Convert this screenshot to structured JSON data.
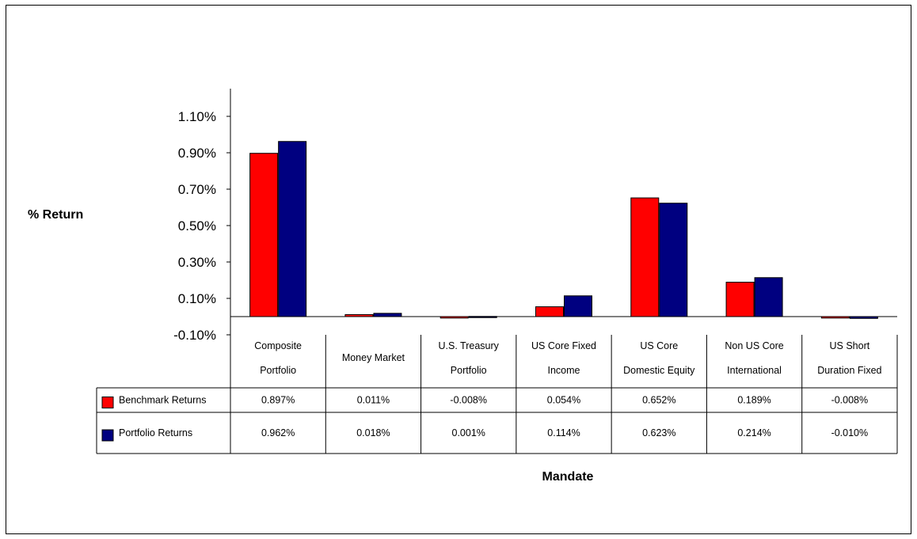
{
  "chart_data": {
    "type": "bar",
    "title": "",
    "ylabel": "% Return",
    "xlabel": "Mandate",
    "ylim": [
      -0.1,
      1.1
    ],
    "yticks": [
      "1.10%",
      "0.90%",
      "0.70%",
      "0.50%",
      "0.30%",
      "0.10%",
      "-0.10%"
    ],
    "grid": false,
    "legend": "data-table",
    "categories": [
      [
        "Composite",
        "Portfolio"
      ],
      [
        "Money Market"
      ],
      [
        "U.S. Treasury",
        "Portfolio"
      ],
      [
        "US Core Fixed",
        "Income"
      ],
      [
        "US Core",
        "Domestic Equity"
      ],
      [
        "Non US Core",
        "International"
      ],
      [
        "US Short",
        "Duration Fixed"
      ]
    ],
    "series": [
      {
        "name": "Benchmark Returns",
        "color": "#ff0000",
        "values": [
          0.897,
          0.011,
          -0.008,
          0.054,
          0.652,
          0.189,
          -0.008
        ],
        "labels": [
          "0.897%",
          "0.011%",
          "-0.008%",
          "0.054%",
          "0.652%",
          "0.189%",
          "-0.008%"
        ]
      },
      {
        "name": "Portfolio Returns",
        "color": "#000080",
        "values": [
          0.962,
          0.018,
          0.001,
          0.114,
          0.623,
          0.214,
          -0.01
        ],
        "labels": [
          "0.962%",
          "0.018%",
          "0.001%",
          "0.114%",
          "0.623%",
          "0.214%",
          "-0.010%"
        ]
      }
    ]
  }
}
